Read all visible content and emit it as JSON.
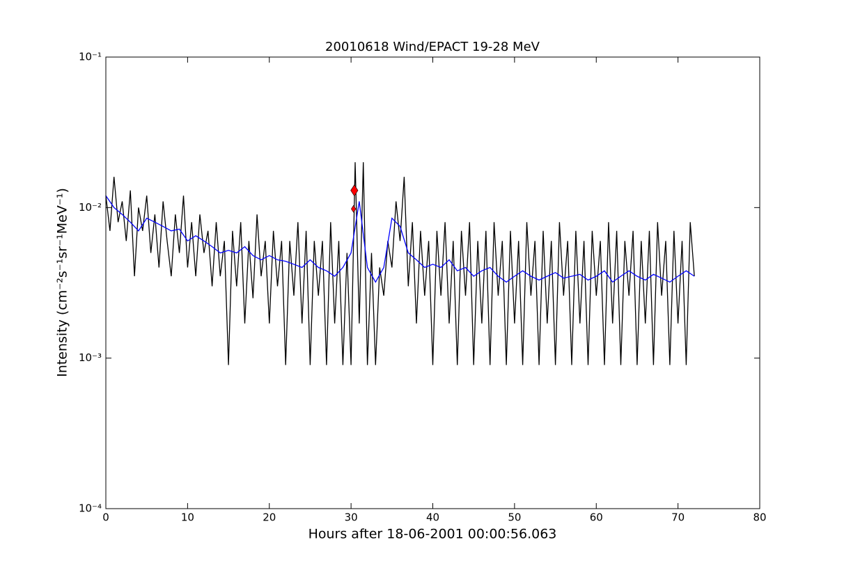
{
  "chart_data": {
    "type": "line",
    "title": "20010618 Wind/EPACT 19-28 MeV",
    "xlabel": "Hours after 18-06-2001 00:00:56.063",
    "ylabel": "Intensity (cm⁻²s⁻¹sr⁻¹MeV⁻¹)",
    "log_y": true,
    "xlim": [
      0,
      80
    ],
    "xticks": [
      0,
      10,
      20,
      30,
      40,
      50,
      60,
      70,
      80
    ],
    "ylim": [
      0.0001,
      0.1
    ],
    "yticks": [
      {
        "value": 0.0001,
        "label": "10⁻⁴"
      },
      {
        "value": 0.001,
        "label": "10⁻³"
      },
      {
        "value": 0.01,
        "label": "10⁻²"
      },
      {
        "value": 0.1,
        "label": "10⁻¹"
      }
    ],
    "series": [
      {
        "color": "#000000",
        "kind": "line",
        "x": [
          0,
          0.5,
          1,
          1.5,
          2,
          2.5,
          3,
          3.5,
          4,
          4.5,
          5,
          5.5,
          6,
          6.5,
          7,
          7.5,
          8,
          8.5,
          9,
          9.5,
          10,
          10.5,
          11,
          11.5,
          12,
          12.5,
          13,
          13.5,
          14,
          14.5,
          15,
          15.5,
          16,
          16.5,
          17,
          17.5,
          18,
          18.5,
          19,
          19.5,
          20,
          20.5,
          21,
          21.5,
          22,
          22.5,
          23,
          23.5,
          24,
          24.5,
          25,
          25.5,
          26,
          26.5,
          27,
          27.5,
          28,
          28.5,
          29,
          29.5,
          30,
          30.5,
          31,
          31.5,
          32,
          32.5,
          33,
          33.5,
          34,
          34.5,
          35,
          35.5,
          36,
          36.5,
          37,
          37.5,
          38,
          38.5,
          39,
          39.5,
          40,
          40.5,
          41,
          41.5,
          42,
          42.5,
          43,
          43.5,
          44,
          44.5,
          45,
          45.5,
          46,
          46.5,
          47,
          47.5,
          48,
          48.5,
          49,
          49.5,
          50,
          50.5,
          51,
          51.5,
          52,
          52.5,
          53,
          53.5,
          54,
          54.5,
          55,
          55.5,
          56,
          56.5,
          57,
          57.5,
          58,
          58.5,
          59,
          59.5,
          60,
          60.5,
          61,
          61.5,
          62,
          62.5,
          63,
          63.5,
          64,
          64.5,
          65,
          65.5,
          66,
          66.5,
          67,
          67.5,
          68,
          68.5,
          69,
          69.5,
          70,
          70.5,
          71,
          71.5,
          72
        ],
        "values": [
          0.012,
          0.007,
          0.016,
          0.008,
          0.011,
          0.006,
          0.013,
          0.0035,
          0.01,
          0.007,
          0.012,
          0.005,
          0.009,
          0.004,
          0.011,
          0.006,
          0.0035,
          0.009,
          0.005,
          0.012,
          0.004,
          0.008,
          0.0035,
          0.009,
          0.005,
          0.007,
          0.003,
          0.008,
          0.0035,
          0.006,
          0.0009,
          0.007,
          0.003,
          0.008,
          0.0017,
          0.006,
          0.0025,
          0.009,
          0.0035,
          0.006,
          0.0017,
          0.007,
          0.003,
          0.006,
          0.0009,
          0.006,
          0.0026,
          0.008,
          0.0017,
          0.007,
          0.0009,
          0.006,
          0.0026,
          0.006,
          0.0009,
          0.008,
          0.0017,
          0.006,
          0.0009,
          0.005,
          0.0009,
          0.02,
          0.0017,
          0.02,
          0.0009,
          0.005,
          0.0009,
          0.004,
          0.0026,
          0.006,
          0.004,
          0.011,
          0.006,
          0.016,
          0.003,
          0.008,
          0.0017,
          0.007,
          0.0026,
          0.006,
          0.0009,
          0.007,
          0.0026,
          0.008,
          0.0017,
          0.006,
          0.0009,
          0.007,
          0.0026,
          0.008,
          0.0009,
          0.006,
          0.0017,
          0.007,
          0.0009,
          0.008,
          0.0026,
          0.006,
          0.0009,
          0.007,
          0.0017,
          0.006,
          0.0009,
          0.008,
          0.0026,
          0.006,
          0.0009,
          0.007,
          0.0017,
          0.006,
          0.0009,
          0.008,
          0.0026,
          0.006,
          0.0009,
          0.007,
          0.0017,
          0.006,
          0.0009,
          0.007,
          0.0026,
          0.006,
          0.0009,
          0.008,
          0.0017,
          0.007,
          0.0009,
          0.006,
          0.0026,
          0.007,
          0.0009,
          0.006,
          0.0017,
          0.007,
          0.0009,
          0.008,
          0.0026,
          0.006,
          0.0009,
          0.007,
          0.0017,
          0.006,
          0.0009,
          0.008,
          0.0035
        ]
      },
      {
        "color": "#0000ff",
        "kind": "line",
        "x": [
          0,
          1,
          2,
          3,
          4,
          5,
          6,
          7,
          8,
          9,
          10,
          11,
          12,
          13,
          14,
          15,
          16,
          17,
          18,
          19,
          20,
          21,
          22,
          23,
          24,
          25,
          26,
          27,
          28,
          29,
          30,
          31,
          32,
          33,
          34,
          35,
          36,
          37,
          38,
          39,
          40,
          41,
          42,
          43,
          44,
          45,
          46,
          47,
          48,
          49,
          50,
          51,
          52,
          53,
          54,
          55,
          56,
          57,
          58,
          59,
          60,
          61,
          62,
          63,
          64,
          65,
          66,
          67,
          68,
          69,
          70,
          71,
          72
        ],
        "values": [
          0.012,
          0.01,
          0.009,
          0.008,
          0.007,
          0.0085,
          0.008,
          0.0075,
          0.007,
          0.0072,
          0.006,
          0.0065,
          0.006,
          0.0055,
          0.005,
          0.0052,
          0.005,
          0.0055,
          0.0048,
          0.0045,
          0.0048,
          0.0045,
          0.0044,
          0.0042,
          0.004,
          0.0045,
          0.004,
          0.0038,
          0.0035,
          0.004,
          0.005,
          0.011,
          0.004,
          0.0032,
          0.004,
          0.0085,
          0.0075,
          0.005,
          0.0045,
          0.004,
          0.0042,
          0.004,
          0.0045,
          0.0038,
          0.004,
          0.0035,
          0.0038,
          0.004,
          0.0035,
          0.0032,
          0.0035,
          0.0038,
          0.0035,
          0.0033,
          0.0035,
          0.0037,
          0.0034,
          0.0035,
          0.0036,
          0.0033,
          0.0035,
          0.0038,
          0.0032,
          0.0035,
          0.0038,
          0.0035,
          0.0033,
          0.0036,
          0.0034,
          0.0032,
          0.0035,
          0.0038,
          0.0035
        ]
      },
      {
        "color": "#ff0000",
        "kind": "diamond",
        "x": [
          30.4,
          30.3
        ],
        "values": [
          0.013,
          0.0098
        ]
      }
    ]
  }
}
